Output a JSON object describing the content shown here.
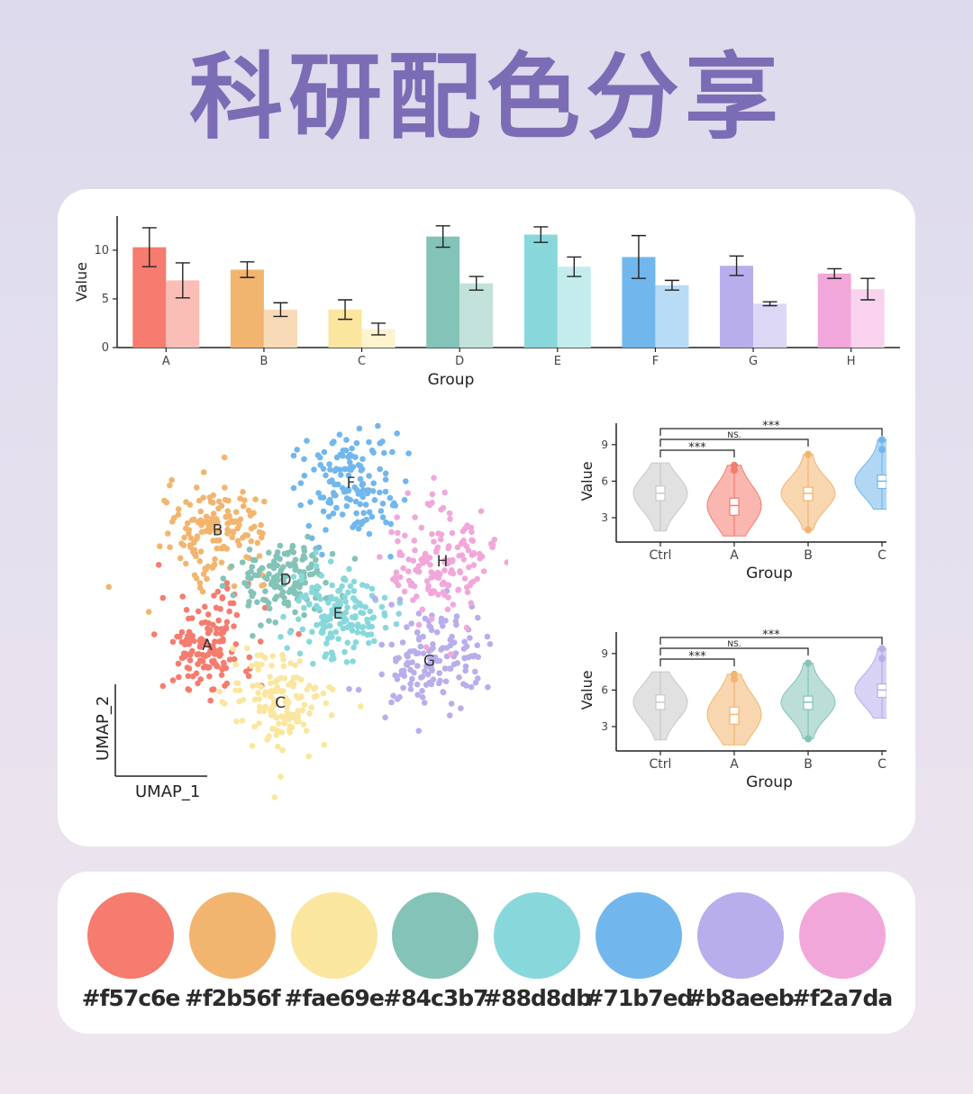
{
  "title": "科研配色分享",
  "palette": [
    {
      "hex": "#f57c6e",
      "label": "#f57c6e"
    },
    {
      "hex": "#f2b56f",
      "label": "#f2b56f"
    },
    {
      "hex": "#fae69e",
      "label": "#fae69e"
    },
    {
      "hex": "#84c3b7",
      "label": "#84c3b7"
    },
    {
      "hex": "#88d8db",
      "label": "#88d8db"
    },
    {
      "hex": "#71b7ed",
      "label": "#71b7ed"
    },
    {
      "hex": "#b8aeeb",
      "label": "#b8aeeb"
    },
    {
      "hex": "#f2a7da",
      "label": "#f2a7da"
    }
  ],
  "chart_data": [
    {
      "type": "bar",
      "xlabel": "Group",
      "ylabel": "Value",
      "ylim": [
        0,
        13.5
      ],
      "yticks": [
        0,
        5,
        10
      ],
      "categories": [
        "A",
        "B",
        "C",
        "D",
        "E",
        "F",
        "G",
        "H"
      ],
      "colors": [
        "#f57c6e",
        "#f2b56f",
        "#fae69e",
        "#84c3b7",
        "#88d8db",
        "#71b7ed",
        "#b8aeeb",
        "#f2a7da"
      ],
      "series": [
        {
          "values": [
            10.3,
            8.0,
            3.9,
            11.4,
            11.6,
            9.3,
            8.4,
            7.6
          ],
          "errors": [
            2.0,
            0.8,
            1.0,
            1.1,
            0.8,
            2.2,
            1.0,
            0.5
          ]
        },
        {
          "values": [
            6.9,
            3.9,
            1.9,
            6.6,
            8.3,
            6.4,
            4.5,
            6.0
          ],
          "errors": [
            1.8,
            0.7,
            0.6,
            0.7,
            1.0,
            0.5,
            0.2,
            1.1
          ]
        }
      ]
    },
    {
      "type": "scatter",
      "xlabel": "UMAP_1",
      "ylabel": "UMAP_2",
      "clusters": [
        {
          "label": "A",
          "color": "#f57c6e",
          "center": [
            -4.0,
            -1.0
          ],
          "spread": [
            1.2,
            1.4
          ]
        },
        {
          "label": "B",
          "color": "#f2b56f",
          "center": [
            -3.6,
            3.4
          ],
          "spread": [
            1.3,
            1.2
          ]
        },
        {
          "label": "C",
          "color": "#fae69e",
          "center": [
            -1.2,
            -3.2
          ],
          "spread": [
            1.3,
            1.2
          ]
        },
        {
          "label": "D",
          "color": "#84c3b7",
          "center": [
            -1.0,
            1.5
          ],
          "spread": [
            1.3,
            1.1
          ]
        },
        {
          "label": "E",
          "color": "#88d8db",
          "center": [
            1.0,
            0.2
          ],
          "spread": [
            1.2,
            1.1
          ]
        },
        {
          "label": "F",
          "color": "#71b7ed",
          "center": [
            1.5,
            5.2
          ],
          "spread": [
            1.3,
            1.4
          ]
        },
        {
          "label": "G",
          "color": "#b8aeeb",
          "center": [
            4.5,
            -1.6
          ],
          "spread": [
            1.4,
            1.3
          ]
        },
        {
          "label": "H",
          "color": "#f2a7da",
          "center": [
            5.0,
            2.2
          ],
          "spread": [
            1.3,
            1.5
          ]
        }
      ]
    },
    {
      "type": "violin",
      "xlabel": "Group",
      "ylabel": "Value",
      "ylim": [
        1,
        11.5
      ],
      "yticks": [
        3,
        6,
        9
      ],
      "categories": [
        "Ctrl",
        "A",
        "B",
        "C"
      ],
      "colors": [
        "#c8c8c8",
        "#f57c6e",
        "#f2b56f",
        "#71b7ed"
      ],
      "median": [
        5.0,
        4.0,
        5.0,
        6.0
      ],
      "q1": [
        4.4,
        3.2,
        4.4,
        5.4
      ],
      "q3": [
        5.6,
        4.6,
        5.5,
        6.5
      ],
      "min": [
        1.9,
        1.5,
        2.0,
        3.7
      ],
      "max": [
        7.5,
        7.3,
        8.2,
        9.4
      ],
      "outliers": [
        [],
        [
          7.3,
          6.9
        ],
        [
          8.2,
          2.0
        ],
        [
          9.4,
          8.6
        ]
      ],
      "comparisons": [
        {
          "from": "Ctrl",
          "to": "A",
          "label": "***"
        },
        {
          "from": "Ctrl",
          "to": "B",
          "label": "NS."
        },
        {
          "from": "Ctrl",
          "to": "C",
          "label": "***"
        }
      ]
    },
    {
      "type": "violin",
      "xlabel": "Group",
      "ylabel": "Value",
      "ylim": [
        1,
        11.5
      ],
      "yticks": [
        3,
        6,
        9
      ],
      "categories": [
        "Ctrl",
        "A",
        "B",
        "C"
      ],
      "colors": [
        "#c8c8c8",
        "#f2b56f",
        "#84c3b7",
        "#b8aeeb"
      ],
      "median": [
        5.0,
        4.0,
        5.0,
        6.0
      ],
      "q1": [
        4.4,
        3.2,
        4.4,
        5.4
      ],
      "q3": [
        5.6,
        4.6,
        5.5,
        6.5
      ],
      "min": [
        1.9,
        1.5,
        2.0,
        3.7
      ],
      "max": [
        7.5,
        7.3,
        8.2,
        9.4
      ],
      "outliers": [
        [],
        [
          7.3,
          6.9
        ],
        [
          8.2,
          2.0
        ],
        [
          9.4,
          8.6
        ]
      ],
      "comparisons": [
        {
          "from": "Ctrl",
          "to": "A",
          "label": "***"
        },
        {
          "from": "Ctrl",
          "to": "B",
          "label": "NS."
        },
        {
          "from": "Ctrl",
          "to": "C",
          "label": "***"
        }
      ]
    }
  ]
}
